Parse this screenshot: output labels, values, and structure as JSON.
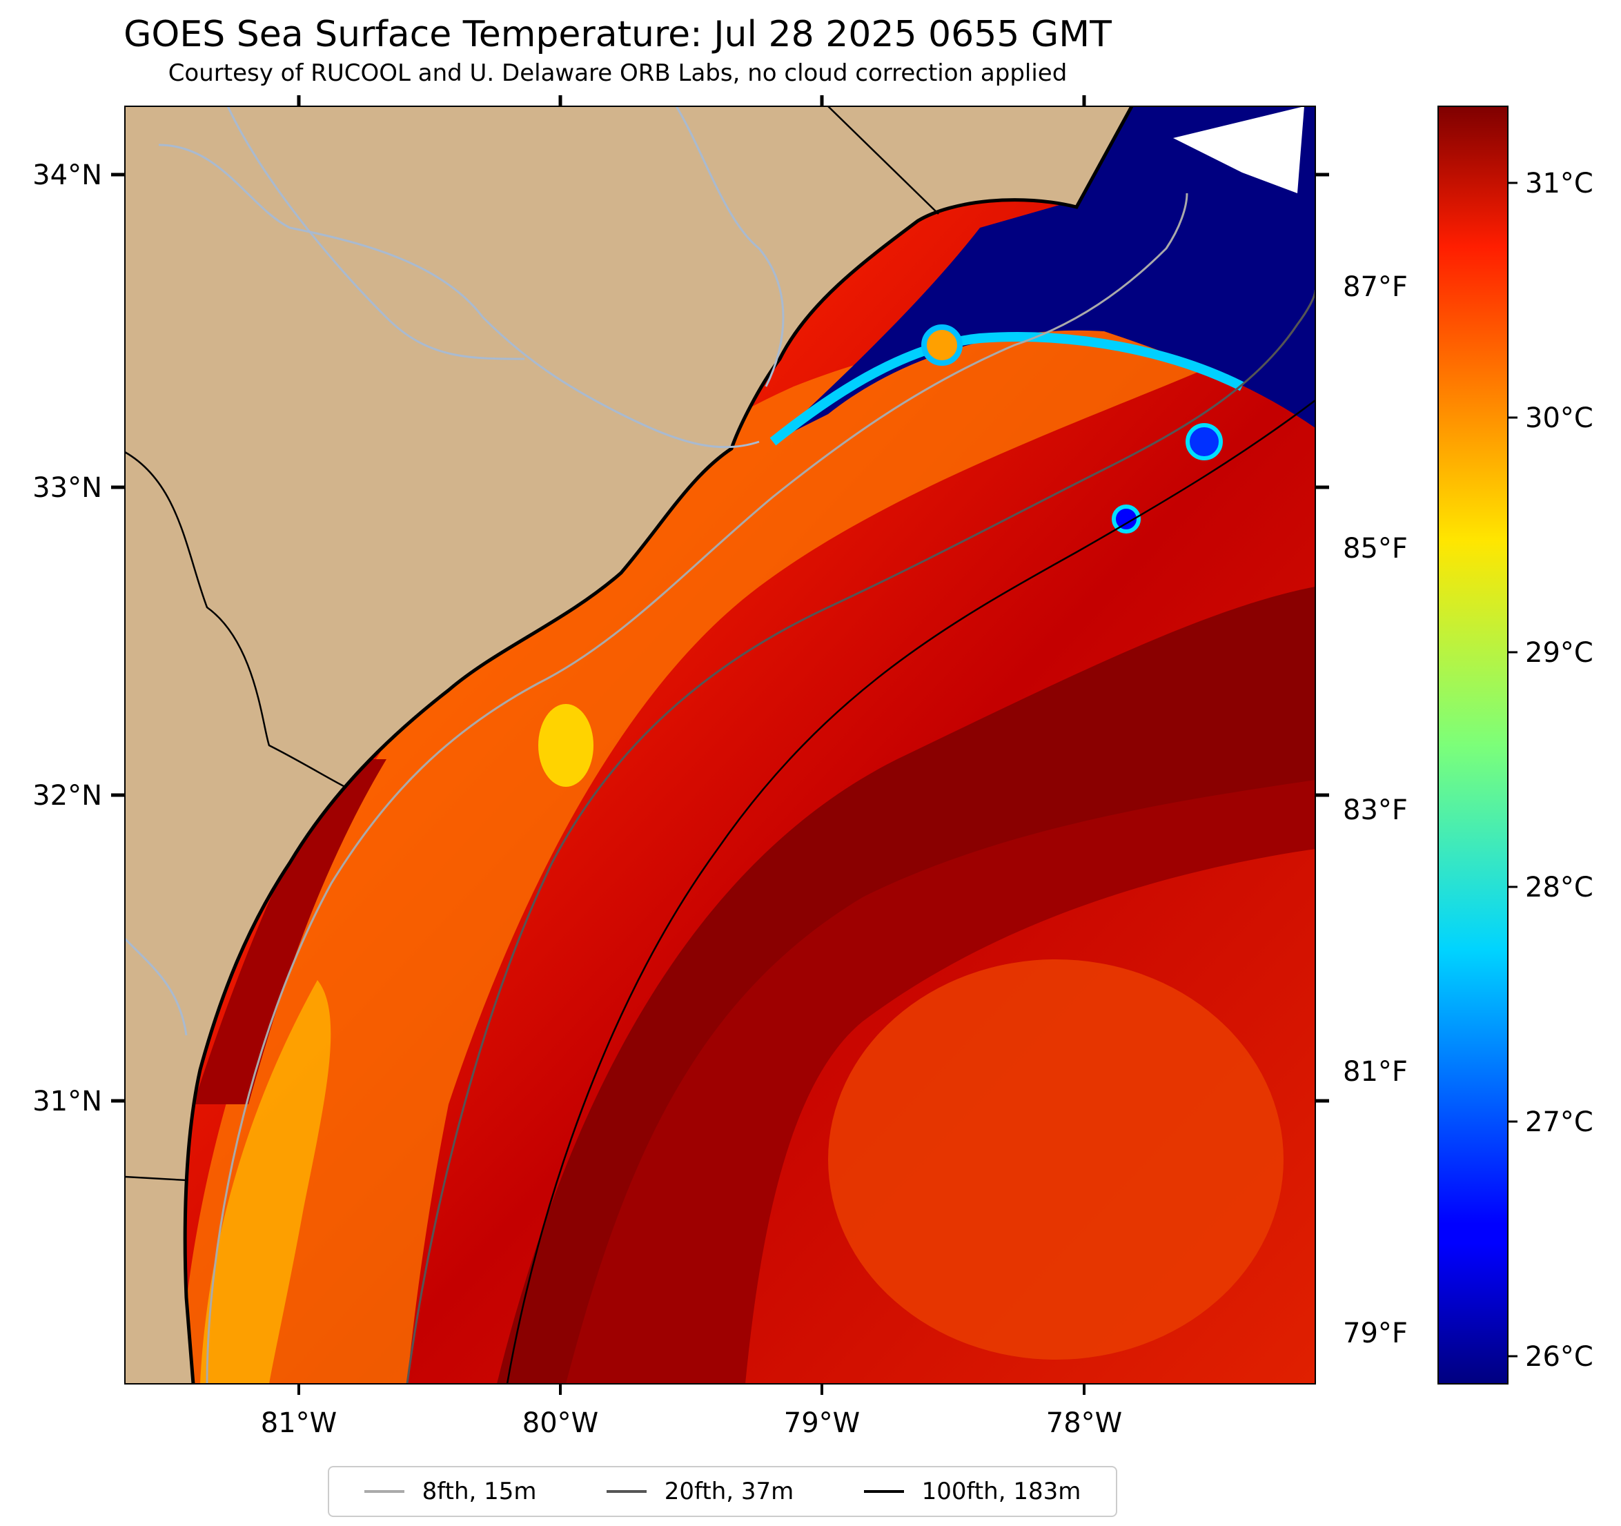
{
  "title": "GOES Sea Surface Temperature: Jul 28 2025 0655 GMT",
  "subtitle": "Courtesy of RUCOOL and U. Delaware ORB Labs, no cloud correction applied",
  "map": {
    "lat_labels": [
      "34°N",
      "33°N",
      "32°N",
      "31°N"
    ],
    "lon_labels": [
      "81°W",
      "80°W",
      "79°W",
      "78°W"
    ],
    "fahrenheit_labels": [
      "87°F",
      "85°F",
      "83°F",
      "81°F",
      "79°F"
    ],
    "land_color": "#d2b48c",
    "river_color": "#a9bad0"
  },
  "colorbar": {
    "colormap": "jet",
    "celsius_labels": [
      "31°C",
      "30°C",
      "29°C",
      "28°C",
      "27°C",
      "26°C"
    ],
    "min_c": 25.8,
    "max_c": 31.5
  },
  "legend": {
    "items": [
      {
        "label": "8fth, 15m",
        "color": "#aaaaaa"
      },
      {
        "label": "20fth, 37m",
        "color": "#555555"
      },
      {
        "label": "100fth, 183m",
        "color": "#000000"
      }
    ]
  }
}
